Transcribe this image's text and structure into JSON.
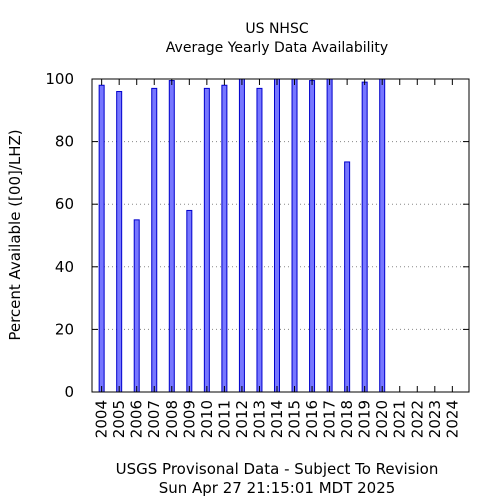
{
  "chart_data": {
    "type": "bar",
    "title": "US NHSC",
    "subtitle": "Average Yearly Data Availability",
    "ylabel": "Percent Available ([00]/LHZ)",
    "xlabel": "USGS Provisonal Data - Subject To Revision",
    "timestamp": "Sun Apr 27 21:15:01 MDT 2025",
    "categories": [
      "2004",
      "2005",
      "2006",
      "2007",
      "2008",
      "2009",
      "2010",
      "2011",
      "2012",
      "2013",
      "2014",
      "2015",
      "2016",
      "2017",
      "2018",
      "2019",
      "2020",
      "2021",
      "2022",
      "2023",
      "2024"
    ],
    "values": [
      98,
      96,
      55,
      97,
      99.5,
      58,
      97,
      98,
      100,
      97,
      100,
      100,
      99.5,
      100,
      73.5,
      99,
      100,
      null,
      null,
      null,
      null
    ],
    "ylim": [
      0,
      100
    ],
    "yticks": [
      0,
      20,
      40,
      60,
      80,
      100
    ],
    "grid": true,
    "bar_color": "#7777ff",
    "bar_edge_color": "#0000cc",
    "grid_color": "#888888"
  }
}
